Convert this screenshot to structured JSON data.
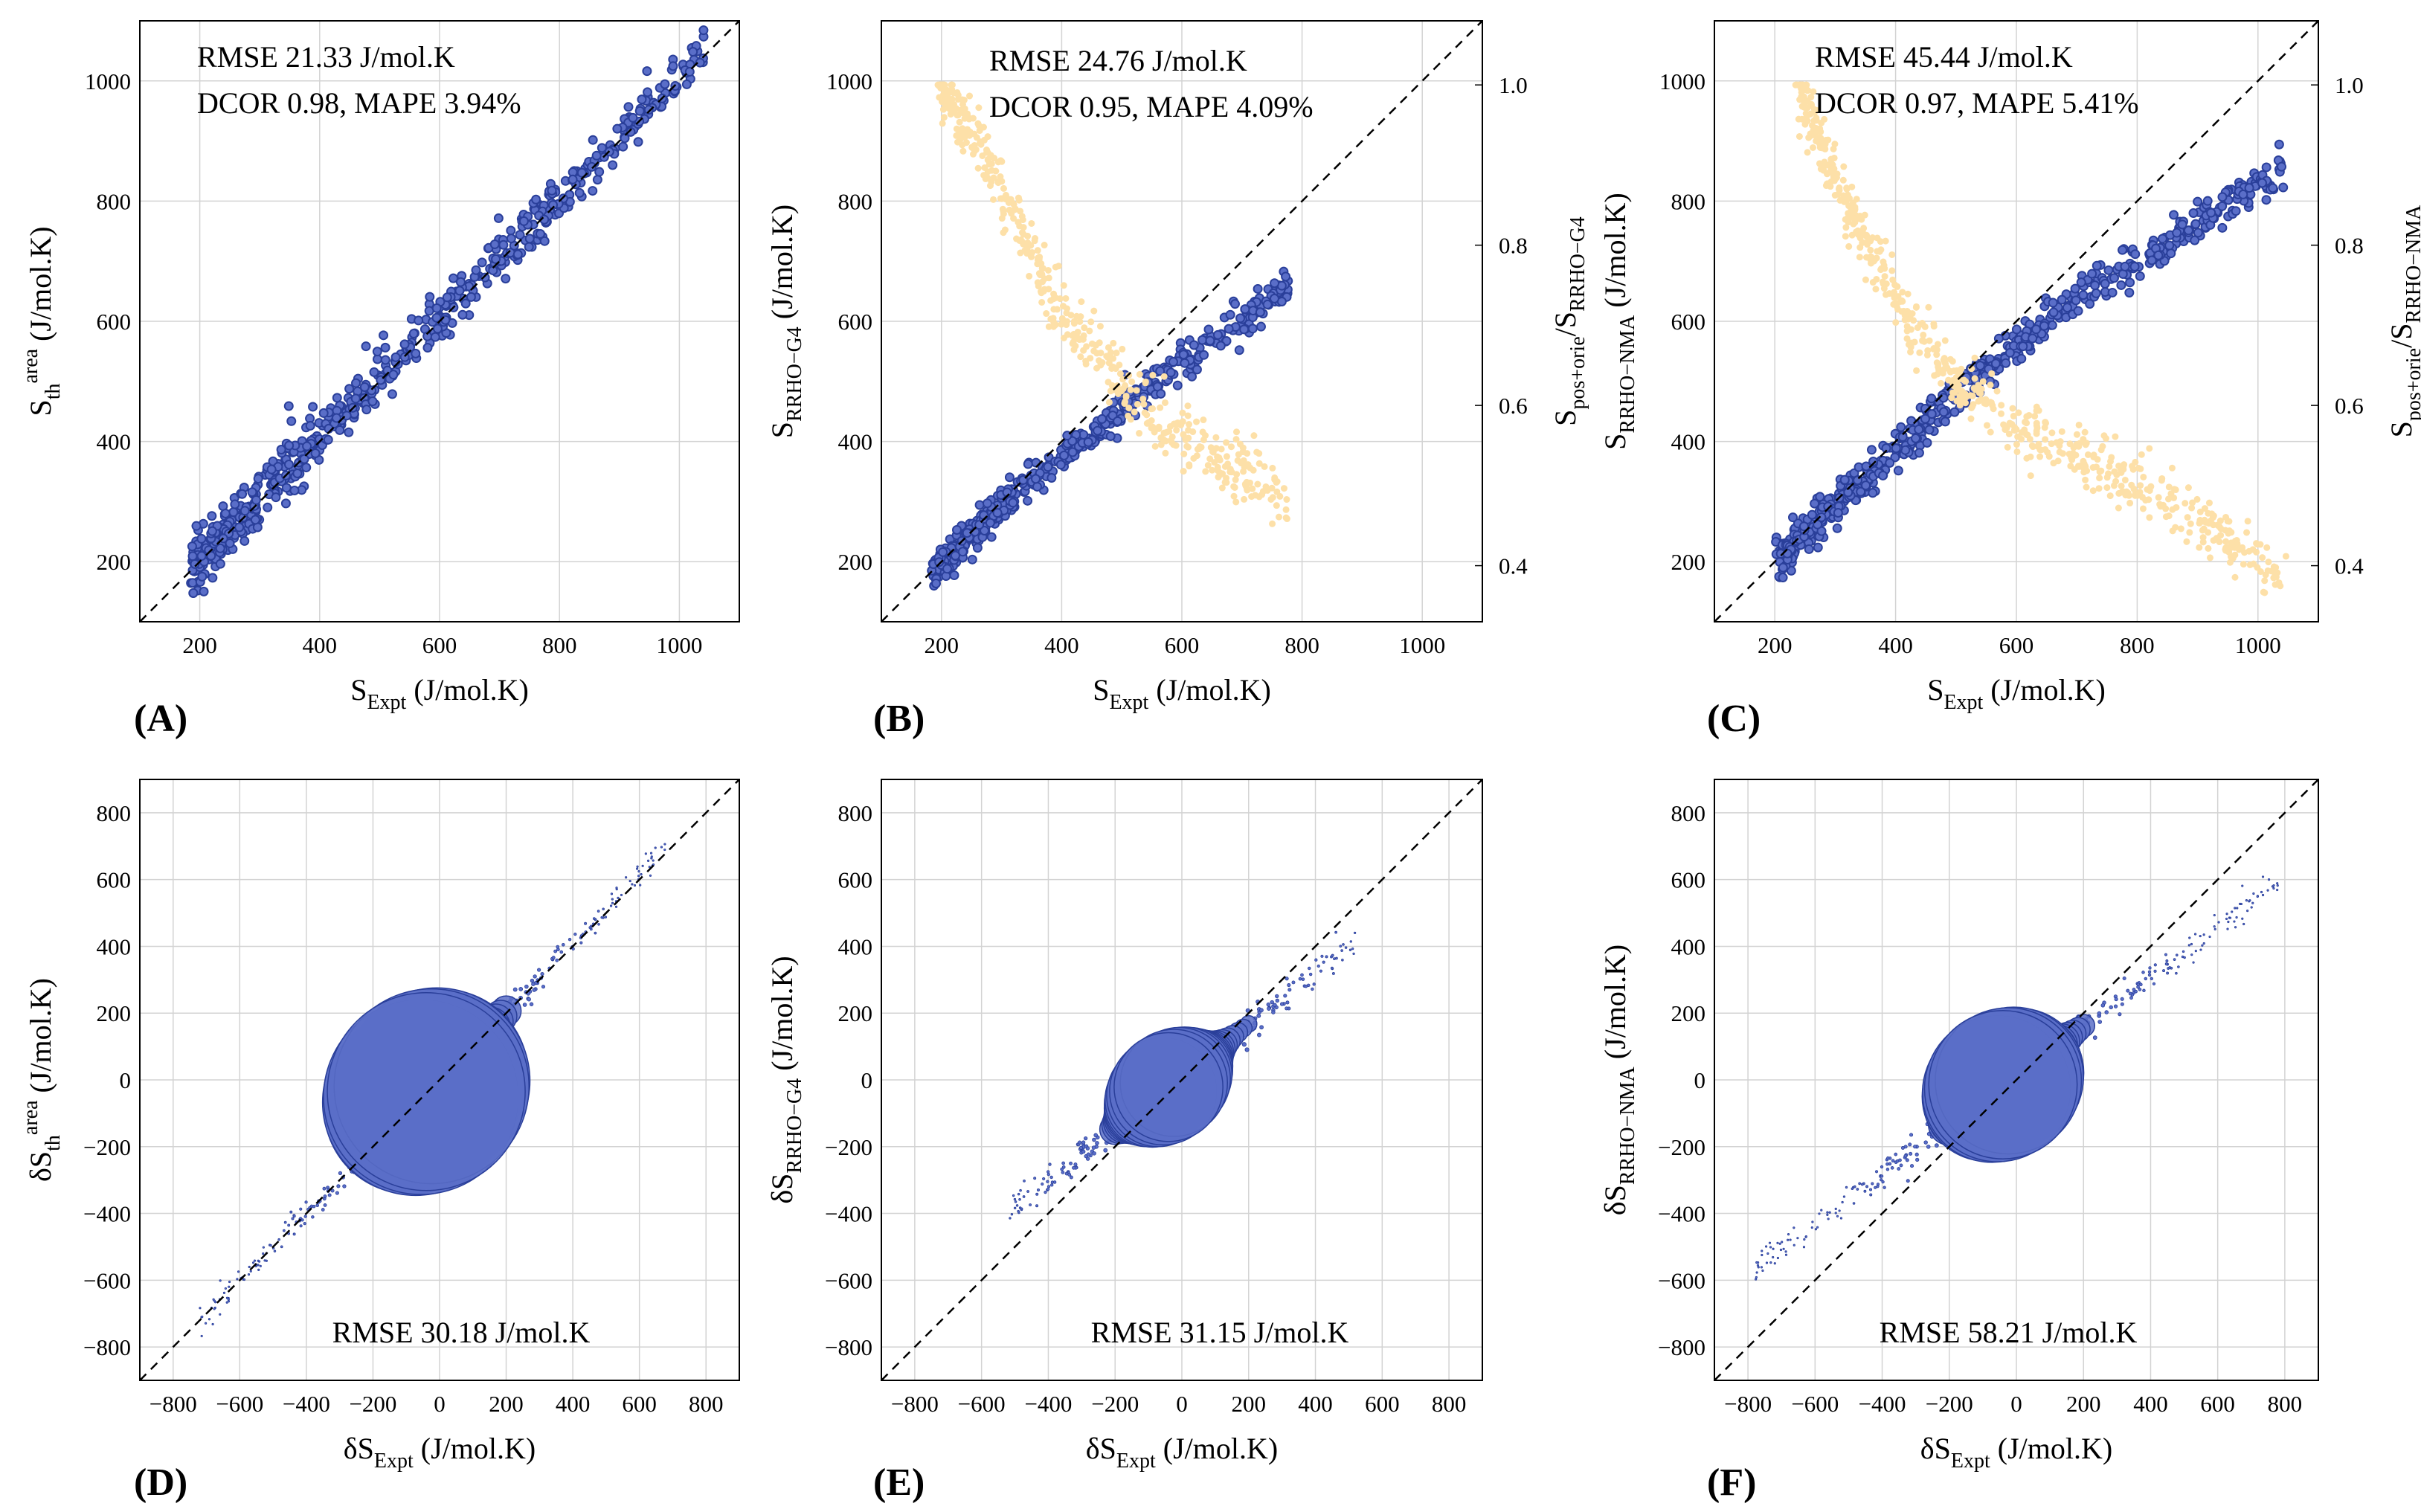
{
  "colors": {
    "scatter_fill": "#5a6ec8",
    "scatter_edge": "#2a3f9a",
    "ratio_points": "#fde0a8",
    "grid": "#d3d3d3",
    "diagonal": "#000000"
  },
  "chart_data": [
    {
      "id": "A",
      "type": "scatter",
      "panel_label": "(A)",
      "xlabel": {
        "main": "S",
        "sub": "Expt",
        "unit": " (J/mol.K)"
      },
      "ylabel": {
        "main": "S",
        "sub": "th",
        "sup": "area",
        "unit": " (J/mol.K)"
      },
      "xlim": [
        100,
        1100
      ],
      "ylim": [
        100,
        1100
      ],
      "xticks": [
        "200",
        "400",
        "600",
        "800",
        "1000"
      ],
      "yticks": [
        "200",
        "400",
        "600",
        "800",
        "1000"
      ],
      "annotation": [
        "RMSE 21.33 J/mol.K",
        "DCOR 0.98, MAPE 3.94%"
      ],
      "series": [
        {
          "name": "S_th^area vs S_Expt",
          "trend": [
            [
              190,
              200
            ],
            [
              1040,
              1045
            ]
          ],
          "spread": 22,
          "n": 650
        }
      ]
    },
    {
      "id": "B",
      "type": "scatter",
      "panel_label": "(B)",
      "xlabel": {
        "main": "S",
        "sub": "Expt",
        "unit": " (J/mol.K)"
      },
      "ylabel": {
        "main": "S",
        "sub": "RRHO−G4",
        "unit": " (J/mol.K)"
      },
      "y2label": {
        "main": "S",
        "sub": "pos+orie",
        "mid": "/S",
        "sub2": "RRHO−G4"
      },
      "xlim": [
        100,
        1100
      ],
      "ylim": [
        100,
        1100
      ],
      "y2lim": [
        0.33,
        1.08
      ],
      "xticks": [
        "200",
        "400",
        "600",
        "800",
        "1000"
      ],
      "yticks": [
        "200",
        "400",
        "600",
        "800",
        "1000"
      ],
      "y2ticks": [
        "0.4",
        "0.6",
        "0.8",
        "1.0"
      ],
      "annotation": [
        "RMSE 24.76 J/mol.K",
        "DCOR 0.95, MAPE 4.09%"
      ],
      "series": [
        {
          "name": "S_RRHO-G4 vs S_Expt",
          "trend": [
            [
              190,
              190
            ],
            [
              320,
              310
            ],
            [
              480,
              440
            ],
            [
              780,
              660
            ]
          ],
          "spread": 14,
          "n": 500
        },
        {
          "name": "S_pos+orie / S_RRHO-G4 (right axis)",
          "axis": "right",
          "trend": [
            [
              200,
              1.0
            ],
            [
              280,
              0.9
            ],
            [
              380,
              0.74
            ],
            [
              480,
              0.64
            ],
            [
              560,
              0.58
            ],
            [
              780,
              0.48
            ]
          ],
          "spread": 0.02,
          "n": 500
        }
      ]
    },
    {
      "id": "C",
      "type": "scatter",
      "panel_label": "(C)",
      "xlabel": {
        "main": "S",
        "sub": "Expt",
        "unit": " (J/mol.K)"
      },
      "ylabel": {
        "main": "S",
        "sub": "RRHO−NMA",
        "unit": " (J/mol.K)"
      },
      "y2label": {
        "main": "S",
        "sub": "pos+orie",
        "mid": "/S",
        "sub2": "RRHO−NMA"
      },
      "xlim": [
        100,
        1100
      ],
      "ylim": [
        100,
        1100
      ],
      "y2lim": [
        0.33,
        1.08
      ],
      "xticks": [
        "200",
        "400",
        "600",
        "800",
        "1000"
      ],
      "yticks": [
        "200",
        "400",
        "600",
        "800",
        "1000"
      ],
      "y2ticks": [
        "0.4",
        "0.6",
        "0.8",
        "1.0"
      ],
      "annotation": [
        "RMSE 45.44 J/mol.K",
        "DCOR 0.97, MAPE 5.41%"
      ],
      "series": [
        {
          "name": "S_RRHO-NMA vs S_Expt",
          "trend": [
            [
              210,
              210
            ],
            [
              350,
              340
            ],
            [
              500,
              480
            ],
            [
              700,
              640
            ],
            [
              1040,
              850
            ]
          ],
          "spread": 16,
          "n": 650
        },
        {
          "name": "S_pos+orie / S_RRHO-NMA (right axis)",
          "axis": "right",
          "trend": [
            [
              240,
              1.0
            ],
            [
              300,
              0.88
            ],
            [
              400,
              0.73
            ],
            [
              500,
              0.63
            ],
            [
              600,
              0.57
            ],
            [
              800,
              0.5
            ],
            [
              1040,
              0.39
            ]
          ],
          "spread": 0.02,
          "n": 650
        }
      ]
    },
    {
      "id": "D",
      "type": "bubble",
      "panel_label": "(D)",
      "xlabel": {
        "main": "δS",
        "sub": "Expt",
        "unit": " (J/mol.K)"
      },
      "ylabel": {
        "main": "δS",
        "sub": "th",
        "sup": "area",
        "unit": " (J/mol.K)"
      },
      "xlim": [
        -900,
        900
      ],
      "ylim": [
        -900,
        900
      ],
      "xticks": [
        "−800",
        "−600",
        "−400",
        "−200",
        "0",
        "200",
        "400",
        "600",
        "800"
      ],
      "yticks": [
        "−800",
        "−600",
        "−400",
        "−200",
        "0",
        "200",
        "400",
        "600",
        "800"
      ],
      "annotation": [
        "RMSE 30.18 J/mol.K"
      ],
      "series": [
        {
          "name": "pairwise differences",
          "trend": [
            [
              -720,
              -720
            ],
            [
              680,
              690
            ]
          ],
          "scale": 1.0,
          "n": 300
        }
      ]
    },
    {
      "id": "E",
      "type": "bubble",
      "panel_label": "(E)",
      "xlabel": {
        "main": "δS",
        "sub": "Expt",
        "unit": " (J/mol.K)"
      },
      "ylabel": {
        "main": "δS",
        "sub": "RRHO−G4",
        "unit": " (J/mol.K)"
      },
      "xlim": [
        -900,
        900
      ],
      "ylim": [
        -900,
        900
      ],
      "xticks": [
        "−800",
        "−600",
        "−400",
        "−200",
        "0",
        "200",
        "400",
        "600",
        "800"
      ],
      "yticks": [
        "−800",
        "−600",
        "−400",
        "−200",
        "0",
        "200",
        "400",
        "600",
        "800"
      ],
      "annotation": [
        "RMSE 31.15 J/mol.K"
      ],
      "series": [
        {
          "name": "pairwise differences",
          "trend": [
            [
              -520,
              -400
            ],
            [
              520,
              420
            ]
          ],
          "scale": 0.55,
          "n": 260
        }
      ]
    },
    {
      "id": "F",
      "type": "bubble",
      "panel_label": "(F)",
      "xlabel": {
        "main": "δS",
        "sub": "Expt",
        "unit": " (J/mol.K)"
      },
      "ylabel": {
        "main": "δS",
        "sub": "RRHO−NMA",
        "unit": " (J/mol.K)"
      },
      "xlim": [
        -900,
        900
      ],
      "ylim": [
        -900,
        900
      ],
      "xticks": [
        "−800",
        "−600",
        "−400",
        "−200",
        "0",
        "200",
        "400",
        "600",
        "800"
      ],
      "yticks": [
        "−800",
        "−600",
        "−400",
        "−200",
        "0",
        "200",
        "400",
        "600",
        "800"
      ],
      "annotation": [
        "RMSE 58.21 J/mol.K"
      ],
      "series": [
        {
          "name": "pairwise differences",
          "trend": [
            [
              -780,
              -560
            ],
            [
              780,
              590
            ]
          ],
          "scale": 0.75,
          "n": 320
        }
      ]
    }
  ]
}
